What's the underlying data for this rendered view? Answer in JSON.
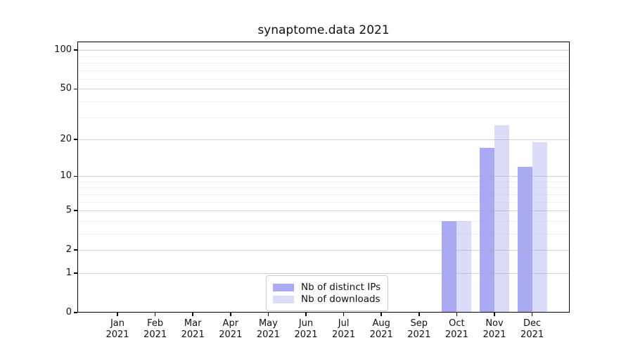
{
  "title": "synaptome.data 2021",
  "chart_data": {
    "type": "bar",
    "title": "synaptome.data 2021",
    "categories": [
      "Jan 2021",
      "Feb 2021",
      "Mar 2021",
      "Apr 2021",
      "May 2021",
      "Jun 2021",
      "Jul 2021",
      "Aug 2021",
      "Sep 2021",
      "Oct 2021",
      "Nov 2021",
      "Dec 2021"
    ],
    "month_labels": [
      "Jan",
      "Feb",
      "Mar",
      "Apr",
      "May",
      "Jun",
      "Jul",
      "Aug",
      "Sep",
      "Oct",
      "Nov",
      "Dec"
    ],
    "year_label": "2021",
    "series": [
      {
        "name": "Nb of distinct IPs",
        "color": "#a9a9f4",
        "values": [
          null,
          null,
          null,
          null,
          null,
          null,
          null,
          null,
          null,
          4,
          17,
          12
        ]
      },
      {
        "name": "Nb of downloads",
        "color": "#dbdbfa",
        "values": [
          null,
          null,
          null,
          null,
          null,
          null,
          null,
          null,
          null,
          4,
          26,
          19
        ]
      }
    ],
    "y_scale": "log1p",
    "y_lim": [
      0,
      100
    ],
    "y_major_ticks": [
      0,
      1,
      2,
      5,
      10,
      20,
      50,
      100
    ],
    "y_minor_ticks": [
      3,
      4,
      6,
      7,
      8,
      9,
      30,
      40,
      60,
      70,
      80,
      90
    ],
    "grid": "on",
    "legend_position": "lower center"
  },
  "colors": {
    "axis": "#000000",
    "grid_major": "#aaaaaa",
    "grid_minor": "#e8e8e8",
    "background": "#ffffff",
    "text": "#111111",
    "legend_border": "#cccccc"
  }
}
